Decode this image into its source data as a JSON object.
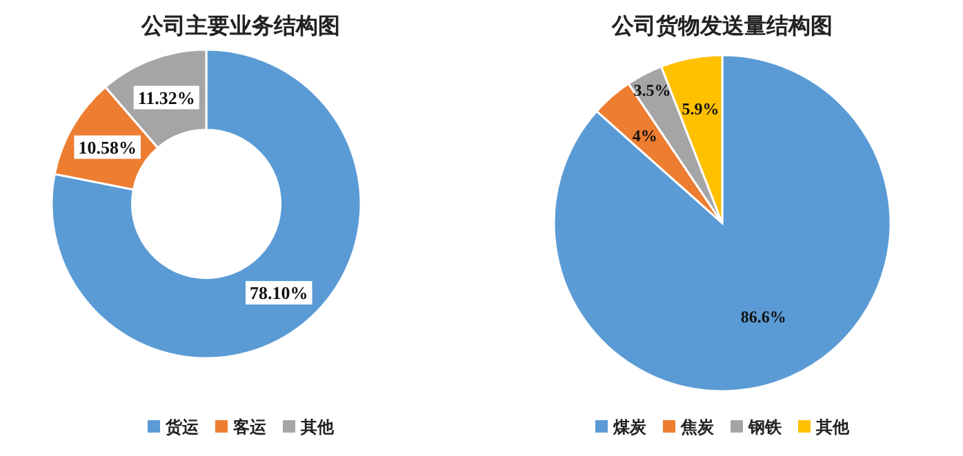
{
  "chart_data": [
    {
      "type": "donut",
      "title": "公司主要业务结构图",
      "categories": [
        "货运",
        "客运",
        "其他"
      ],
      "values": [
        78.1,
        10.58,
        11.32
      ],
      "colors": [
        "#5b9bd5",
        "#ed7d31",
        "#a5a5a5"
      ],
      "value_labels": [
        "78.10%",
        "10.58%",
        "11.32%"
      ],
      "legend": "bottom"
    },
    {
      "type": "pie",
      "title": "公司货物发送量结构图",
      "categories": [
        "煤炭",
        "焦炭",
        "钢铁",
        "其他"
      ],
      "values": [
        86.6,
        4,
        3.5,
        5.9
      ],
      "colors": [
        "#5b9bd5",
        "#ed7d31",
        "#a5a5a5",
        "#ffc000"
      ],
      "value_labels": [
        "86.6%",
        "4%",
        "3.5%",
        "5.9%"
      ],
      "legend": "bottom"
    }
  ]
}
